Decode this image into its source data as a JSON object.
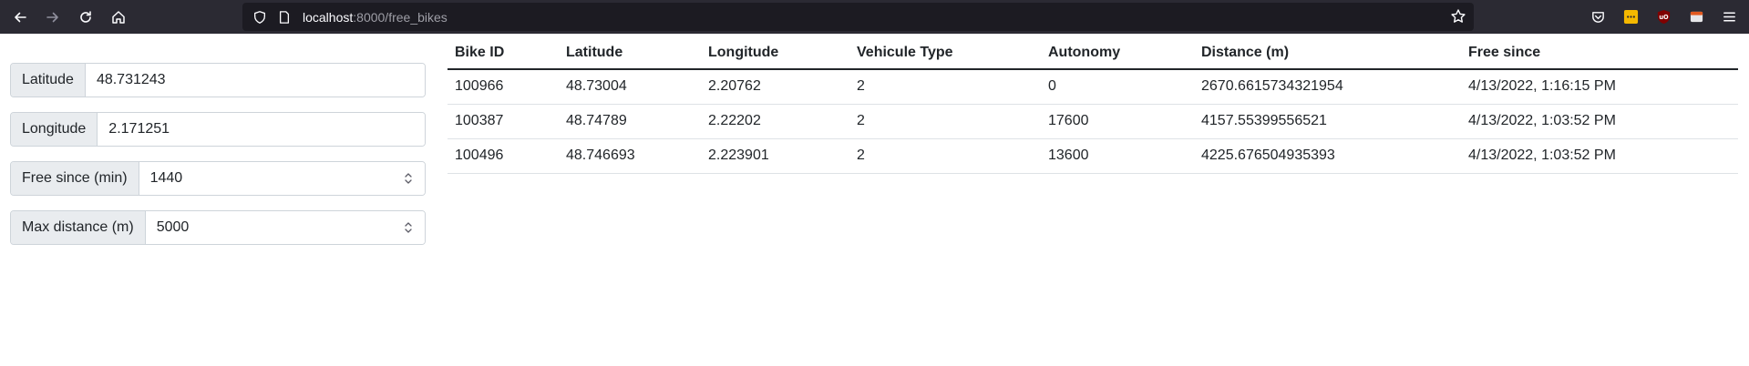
{
  "browser": {
    "url_host": "localhost",
    "url_path": ":8000/free_bikes"
  },
  "form": {
    "latitude": {
      "label": "Latitude",
      "value": "48.731243"
    },
    "longitude": {
      "label": "Longitude",
      "value": "2.171251"
    },
    "free_since": {
      "label": "Free since (min)",
      "value": "1440"
    },
    "max_distance": {
      "label": "Max distance (m)",
      "value": "5000"
    }
  },
  "table": {
    "headers": [
      "Bike ID",
      "Latitude",
      "Longitude",
      "Vehicule Type",
      "Autonomy",
      "Distance (m)",
      "Free since"
    ],
    "rows": [
      [
        "100966",
        "48.73004",
        "2.20762",
        "2",
        "0",
        "2670.6615734321954",
        "4/13/2022, 1:16:15 PM"
      ],
      [
        "100387",
        "48.74789",
        "2.22202",
        "2",
        "17600",
        "4157.55399556521",
        "4/13/2022, 1:03:52 PM"
      ],
      [
        "100496",
        "48.746693",
        "2.223901",
        "2",
        "13600",
        "4225.676504935393",
        "4/13/2022, 1:03:52 PM"
      ]
    ]
  }
}
